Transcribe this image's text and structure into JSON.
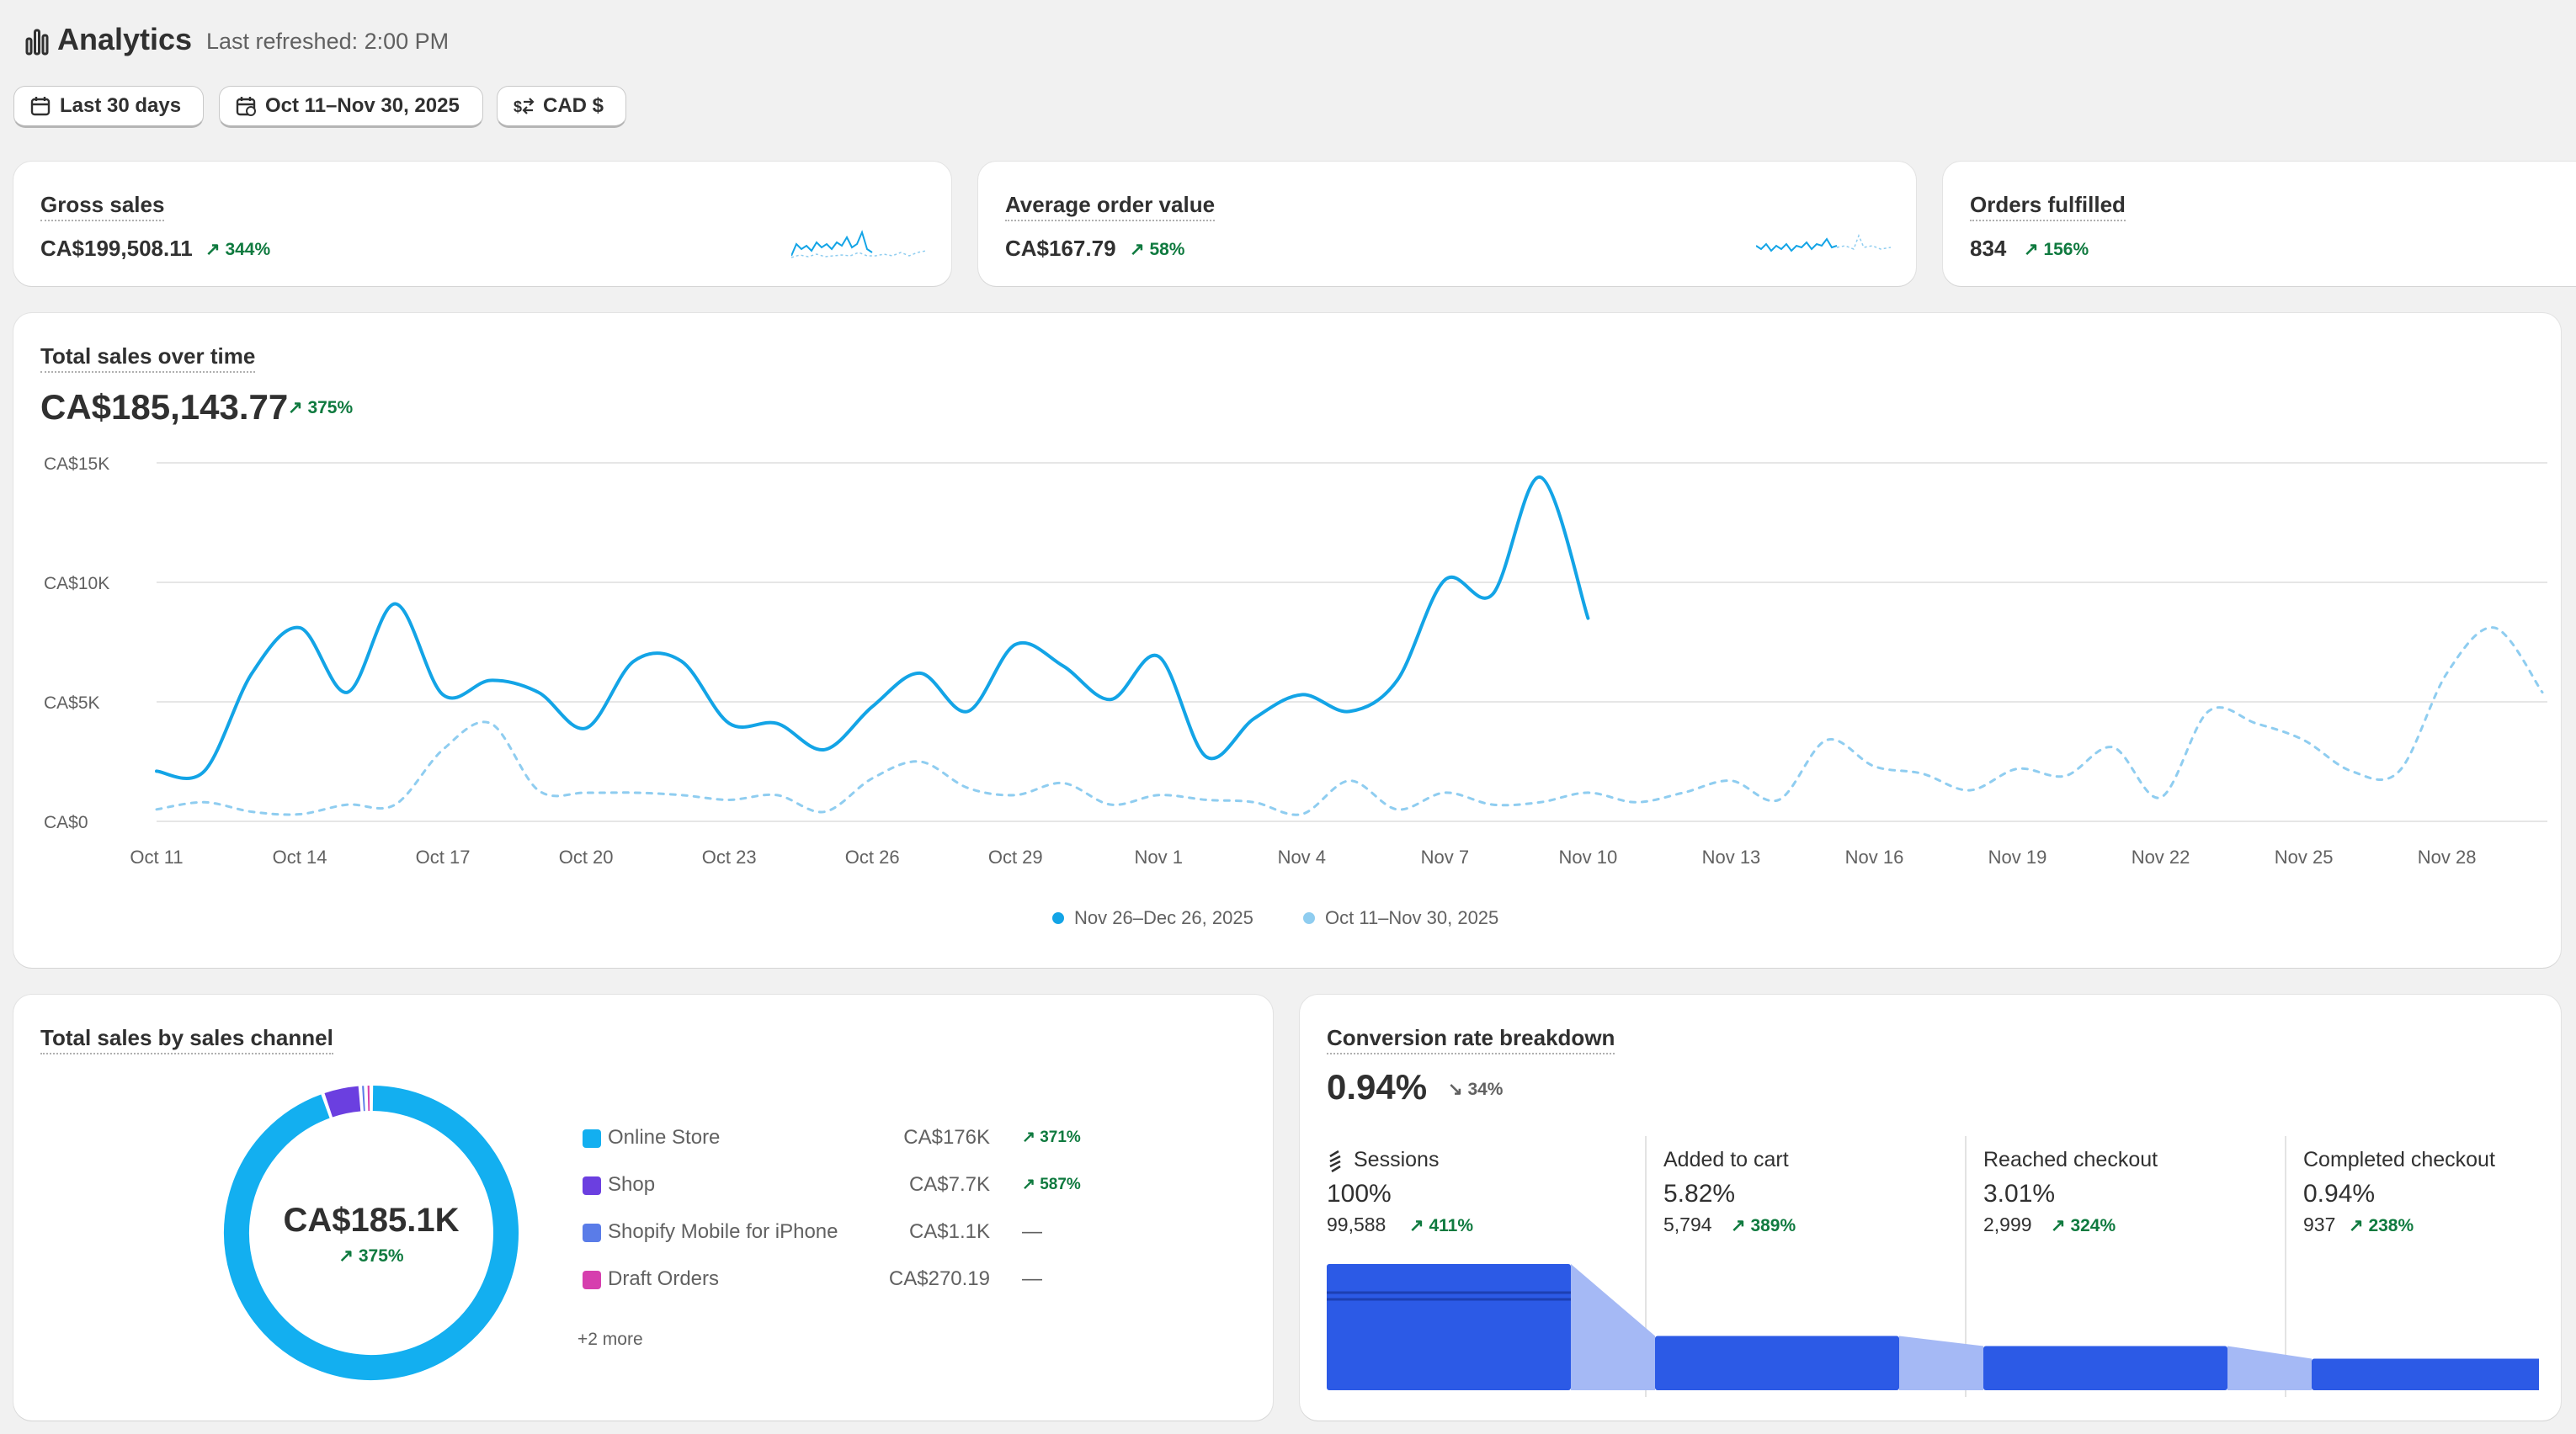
{
  "header": {
    "title": "Analytics",
    "refreshed": "Last refreshed: 2:00 PM"
  },
  "filters": {
    "range_label": "Last 30 days",
    "compare_label": "Oct 11–Nov 30, 2025",
    "currency_label": "CAD $"
  },
  "kpis": [
    {
      "label": "Gross sales",
      "value": "CA$199,508.11",
      "delta": "344%"
    },
    {
      "label": "Average order value",
      "value": "CA$167.79",
      "delta": "58%"
    },
    {
      "label": "Orders fulfilled",
      "value": "834",
      "delta": "156%"
    }
  ],
  "sales_over_time": {
    "label": "Total sales over time",
    "value": "CA$185,143.77",
    "delta": "375%"
  },
  "chart_data": {
    "type": "line",
    "title": "Total sales over time",
    "ylim": [
      0,
      15000
    ],
    "y_ticks": [
      "CA$15K",
      "CA$10K",
      "CA$5K",
      "CA$0"
    ],
    "x_ticks": [
      "Oct 11",
      "Oct 14",
      "Oct 17",
      "Oct 20",
      "Oct 23",
      "Oct 26",
      "Oct 29",
      "Nov 1",
      "Nov 4",
      "Nov 7",
      "Nov 10",
      "Nov 13",
      "Nov 16",
      "Nov 19",
      "Nov 22",
      "Nov 25",
      "Nov 28"
    ],
    "grid": true,
    "legend_position": "bottom",
    "series": [
      {
        "name": "Nov 26–Dec 26, 2025",
        "color": "#13a4e6",
        "style": "solid",
        "x": [
          "Oct 11",
          "Oct 12",
          "Oct 13",
          "Oct 14",
          "Oct 15",
          "Oct 16",
          "Oct 17",
          "Oct 18",
          "Oct 19",
          "Oct 20",
          "Oct 21",
          "Oct 22",
          "Oct 23",
          "Oct 24",
          "Oct 25",
          "Oct 26",
          "Oct 27",
          "Oct 28",
          "Oct 29",
          "Oct 30",
          "Oct 31",
          "Nov 1",
          "Nov 2",
          "Nov 3",
          "Nov 4",
          "Nov 5",
          "Nov 6",
          "Nov 7",
          "Nov 8",
          "Nov 9",
          "Nov 10"
        ],
        "values": [
          2100,
          2100,
          6200,
          8100,
          5400,
          9100,
          5300,
          5900,
          5400,
          3900,
          6700,
          6700,
          4100,
          4100,
          3000,
          4800,
          6200,
          4600,
          7400,
          6500,
          5100,
          6900,
          2700,
          4300,
          5300,
          4600,
          5900,
          10100,
          9500,
          14400,
          8500
        ]
      },
      {
        "name": "Oct 11–Nov 30, 2025",
        "color": "#8fcdf0",
        "style": "dashed",
        "x": [
          "Oct 11",
          "Oct 12",
          "Oct 13",
          "Oct 14",
          "Oct 15",
          "Oct 16",
          "Oct 17",
          "Oct 18",
          "Oct 19",
          "Oct 20",
          "Oct 21",
          "Oct 22",
          "Oct 23",
          "Oct 24",
          "Oct 25",
          "Oct 26",
          "Oct 27",
          "Oct 28",
          "Oct 29",
          "Oct 30",
          "Oct 31",
          "Nov 1",
          "Nov 2",
          "Nov 3",
          "Nov 4",
          "Nov 5",
          "Nov 6",
          "Nov 7",
          "Nov 8",
          "Nov 9",
          "Nov 10",
          "Nov 11",
          "Nov 12",
          "Nov 13",
          "Nov 14",
          "Nov 15",
          "Nov 16",
          "Nov 17",
          "Nov 18",
          "Nov 19",
          "Nov 20",
          "Nov 21",
          "Nov 22",
          "Nov 23",
          "Nov 24",
          "Nov 25",
          "Nov 26",
          "Nov 27",
          "Nov 28",
          "Nov 29",
          "Nov 30"
        ],
        "values": [
          500,
          800,
          400,
          300,
          700,
          700,
          3000,
          4100,
          1300,
          1200,
          1200,
          1100,
          900,
          1100,
          400,
          1800,
          2500,
          1400,
          1100,
          1600,
          700,
          1100,
          900,
          800,
          300,
          1700,
          500,
          1200,
          700,
          800,
          1200,
          800,
          1200,
          1700,
          900,
          3400,
          2300,
          2000,
          1300,
          2200,
          1900,
          3100,
          1000,
          4600,
          4100,
          3400,
          2100,
          2100,
          6200,
          8100,
          5400
        ]
      }
    ]
  },
  "sales_by_channel": {
    "label": "Total sales by sales channel",
    "total": "CA$185.1K",
    "delta": "375%",
    "more": "+2 more",
    "chart_data": {
      "type": "pie",
      "slices": [
        {
          "name": "Online Store",
          "value": 176000,
          "display": "CA$176K",
          "delta": "371%",
          "color": "#13aff0"
        },
        {
          "name": "Shop",
          "value": 7700,
          "display": "CA$7.7K",
          "delta": "587%",
          "color": "#6b3fe0"
        },
        {
          "name": "Shopify Mobile for iPhone",
          "value": 1100,
          "display": "CA$1.1K",
          "delta": "—",
          "color": "#5a7ce8"
        },
        {
          "name": "Draft Orders",
          "value": 270.19,
          "display": "CA$270.19",
          "delta": "—",
          "color": "#d63fae"
        }
      ]
    }
  },
  "conversion": {
    "label": "Conversion rate breakdown",
    "rate": "0.94%",
    "delta": "34%",
    "stages": [
      {
        "name": "Sessions",
        "pct": "100%",
        "count": "99,588",
        "delta": "411%",
        "level": 100
      },
      {
        "name": "Added to cart",
        "pct": "5.82%",
        "count": "5,794",
        "delta": "389%",
        "level": 43
      },
      {
        "name": "Reached checkout",
        "pct": "3.01%",
        "count": "2,999",
        "delta": "324%",
        "level": 35
      },
      {
        "name": "Completed checkout",
        "pct": "0.94%",
        "count": "937",
        "delta": "238%",
        "level": 25
      }
    ]
  }
}
